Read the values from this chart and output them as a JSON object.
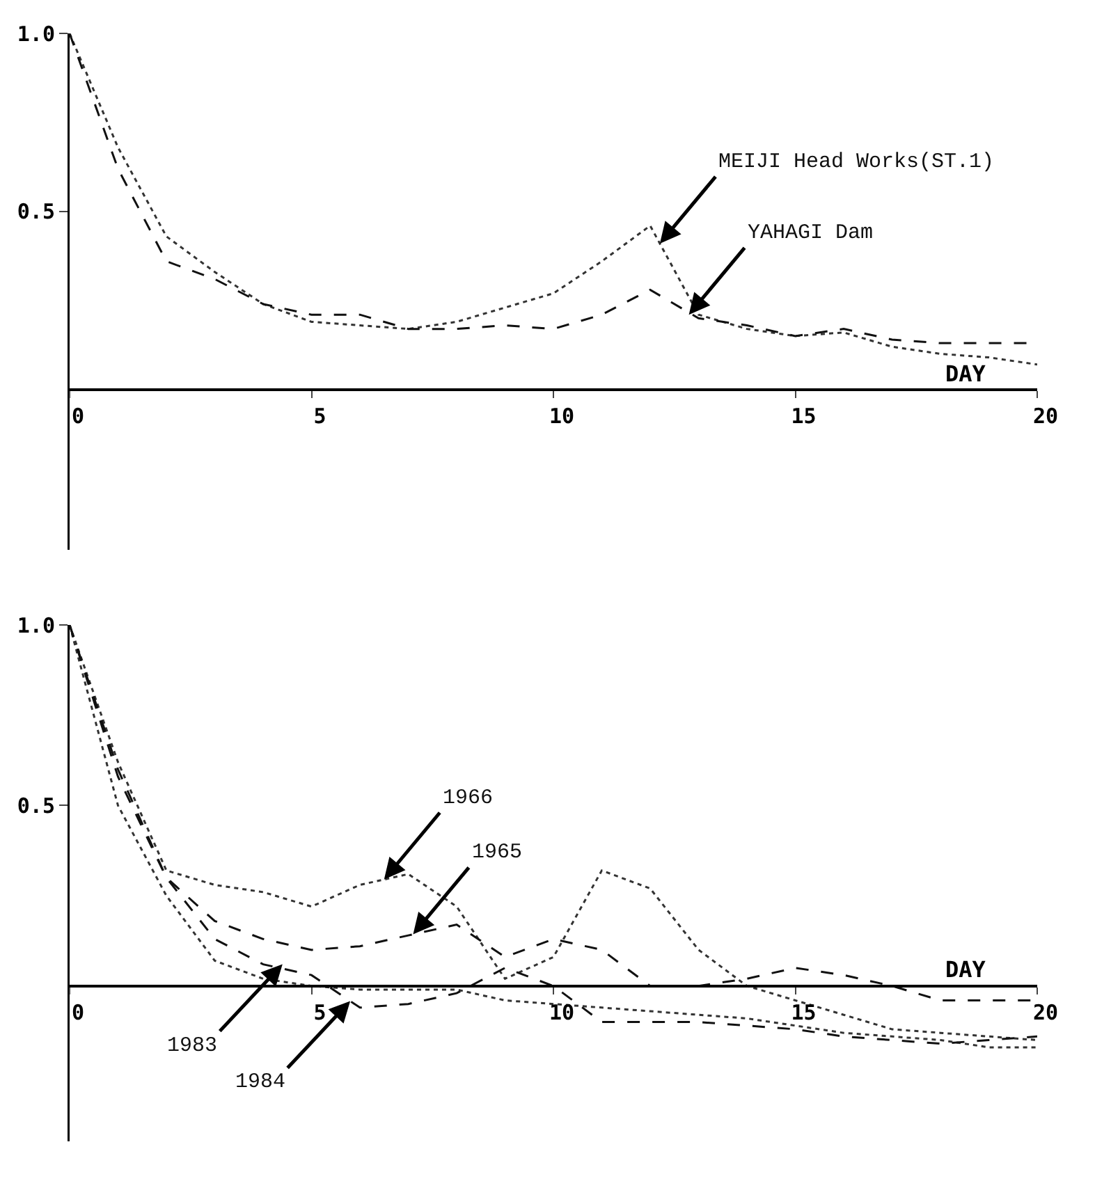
{
  "chart_data": [
    {
      "type": "line",
      "xlabel": "DAY",
      "x": [
        0,
        1,
        2,
        3,
        4,
        5,
        6,
        7,
        8,
        9,
        10,
        11,
        12,
        13,
        14,
        15,
        16,
        17,
        18,
        19,
        20
      ],
      "series": [
        {
          "color": "#333333",
          "line_style": "dotted",
          "values": [
            1.0,
            0.68,
            0.43,
            0.33,
            0.24,
            0.19,
            0.18,
            0.17,
            0.19,
            0.23,
            0.27,
            0.36,
            0.46,
            0.21,
            0.17,
            0.15,
            0.16,
            0.12,
            0.1,
            0.09,
            0.07
          ]
        },
        {
          "color": "#111111",
          "line_style": "dashed",
          "values": [
            1.0,
            0.62,
            0.36,
            0.31,
            0.24,
            0.21,
            0.21,
            0.17,
            0.17,
            0.18,
            0.17,
            0.21,
            0.28,
            0.2,
            0.18,
            0.15,
            0.17,
            0.14,
            0.13,
            0.13,
            0.13
          ]
        }
      ],
      "annotations": [
        {
          "text": "MEIJI Head Works(ST.1)",
          "x": 12.2,
          "y": 0.41
        },
        {
          "text": "YAHAGI Dam",
          "x": 12.8,
          "y": 0.21
        }
      ],
      "xlim": [
        0,
        20
      ],
      "ylim": [
        -0.45,
        1.0
      ],
      "xticks": [
        0,
        5,
        10,
        15,
        20
      ],
      "yticks": [
        0.5,
        {
          "value": 1,
          "label": "1.0"
        }
      ],
      "grid": false,
      "marker": "none"
    },
    {
      "type": "line",
      "xlabel": "DAY",
      "x": [
        0,
        1,
        2,
        3,
        4,
        5,
        6,
        7,
        8,
        9,
        10,
        11,
        12,
        13,
        14,
        15,
        16,
        17,
        18,
        19,
        20
      ],
      "series": [
        {
          "color": "#333333",
          "line_style": "dotted",
          "values": [
            1.0,
            0.62,
            0.32,
            0.28,
            0.26,
            0.22,
            0.28,
            0.31,
            0.22,
            0.02,
            0.08,
            0.32,
            0.27,
            0.1,
            0.0,
            -0.04,
            -0.08,
            -0.12,
            -0.13,
            -0.14,
            -0.15
          ]
        },
        {
          "color": "#111111",
          "line_style": "dashed",
          "values": [
            1.0,
            0.6,
            0.3,
            0.18,
            0.13,
            0.1,
            0.11,
            0.14,
            0.17,
            0.08,
            0.13,
            0.1,
            0.0,
            0.0,
            0.02,
            0.05,
            0.03,
            0.0,
            -0.04,
            -0.04,
            -0.04
          ]
        },
        {
          "color": "#333333",
          "line_style": "dotted",
          "values": [
            1.0,
            0.5,
            0.25,
            0.07,
            0.02,
            0.0,
            -0.01,
            -0.01,
            -0.01,
            -0.04,
            -0.05,
            -0.06,
            -0.07,
            -0.08,
            -0.09,
            -0.11,
            -0.13,
            -0.14,
            -0.15,
            -0.17,
            -0.17
          ]
        },
        {
          "color": "#111111",
          "line_style": "dashed",
          "values": [
            1.0,
            0.58,
            0.3,
            0.13,
            0.06,
            0.03,
            -0.06,
            -0.05,
            -0.02,
            0.05,
            0.0,
            -0.1,
            -0.1,
            -0.1,
            -0.11,
            -0.12,
            -0.14,
            -0.15,
            -0.16,
            -0.15,
            -0.14
          ]
        }
      ],
      "annotations": [
        {
          "text": "1966",
          "x": 6.5,
          "y": 0.295
        },
        {
          "text": "1965",
          "x": 7.1,
          "y": 0.143
        },
        {
          "text": "1983",
          "x": 4.4,
          "y": 0.06
        },
        {
          "text": "1984",
          "x": 5.8,
          "y": -0.042
        }
      ],
      "xlim": [
        0,
        20
      ],
      "ylim": [
        -0.43,
        1.0
      ],
      "xticks": [
        0,
        5,
        10,
        15,
        20
      ],
      "yticks": [
        0.5,
        {
          "value": 1,
          "label": "1.0"
        }
      ],
      "grid": false,
      "marker": "none"
    }
  ]
}
